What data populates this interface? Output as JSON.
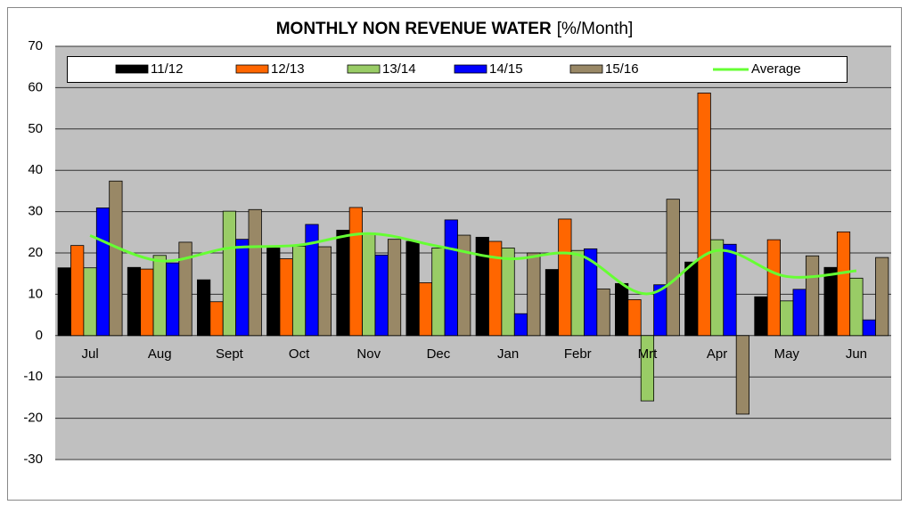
{
  "chart_data": {
    "type": "bar",
    "title": "MONTHLY NON REVENUE WATER",
    "title_unit": "[%/Month]",
    "categories": [
      "Jul",
      "Aug",
      "Sept",
      "Oct",
      "Nov",
      "Dec",
      "Jan",
      "Febr",
      "Mrt",
      "Apr",
      "May",
      "Jun"
    ],
    "series": [
      {
        "name": "11/12",
        "color": "#000000",
        "values": [
          16.4,
          16.5,
          13.5,
          21.2,
          25.5,
          22.8,
          23.8,
          16.0,
          12.6,
          17.8,
          9.4,
          16.5
        ]
      },
      {
        "name": "12/13",
        "color": "#ff6600",
        "values": [
          21.8,
          16.1,
          8.2,
          18.6,
          31.0,
          12.8,
          22.8,
          28.2,
          8.7,
          58.7,
          23.2,
          25.1
        ]
      },
      {
        "name": "13/14",
        "color": "#99cc66",
        "values": [
          16.4,
          19.4,
          30.1,
          21.6,
          24.8,
          21.2,
          21.2,
          20.6,
          -15.8,
          23.2,
          8.4,
          13.9
        ]
      },
      {
        "name": "14/15",
        "color": "#0000ff",
        "values": [
          30.9,
          17.6,
          23.3,
          26.9,
          19.5,
          28.0,
          5.3,
          21.0,
          12.3,
          22.1,
          11.2,
          3.8
        ]
      },
      {
        "name": "15/16",
        "color": "#998866",
        "values": [
          37.4,
          22.6,
          30.5,
          21.5,
          23.3,
          24.3,
          20.0,
          11.3,
          33.0,
          -19.0,
          19.3,
          18.9
        ]
      },
      {
        "name": "Average",
        "color": "#66ff33",
        "type": "line",
        "values": [
          24.2,
          18.1,
          21.2,
          21.9,
          24.7,
          21.6,
          18.6,
          19.6,
          10.1,
          20.6,
          14.3,
          15.7
        ]
      }
    ],
    "ylim": [
      -30,
      70
    ],
    "yticks": [
      -30,
      -20,
      -10,
      0,
      10,
      20,
      30,
      40,
      50,
      60,
      70
    ],
    "grid": true
  }
}
